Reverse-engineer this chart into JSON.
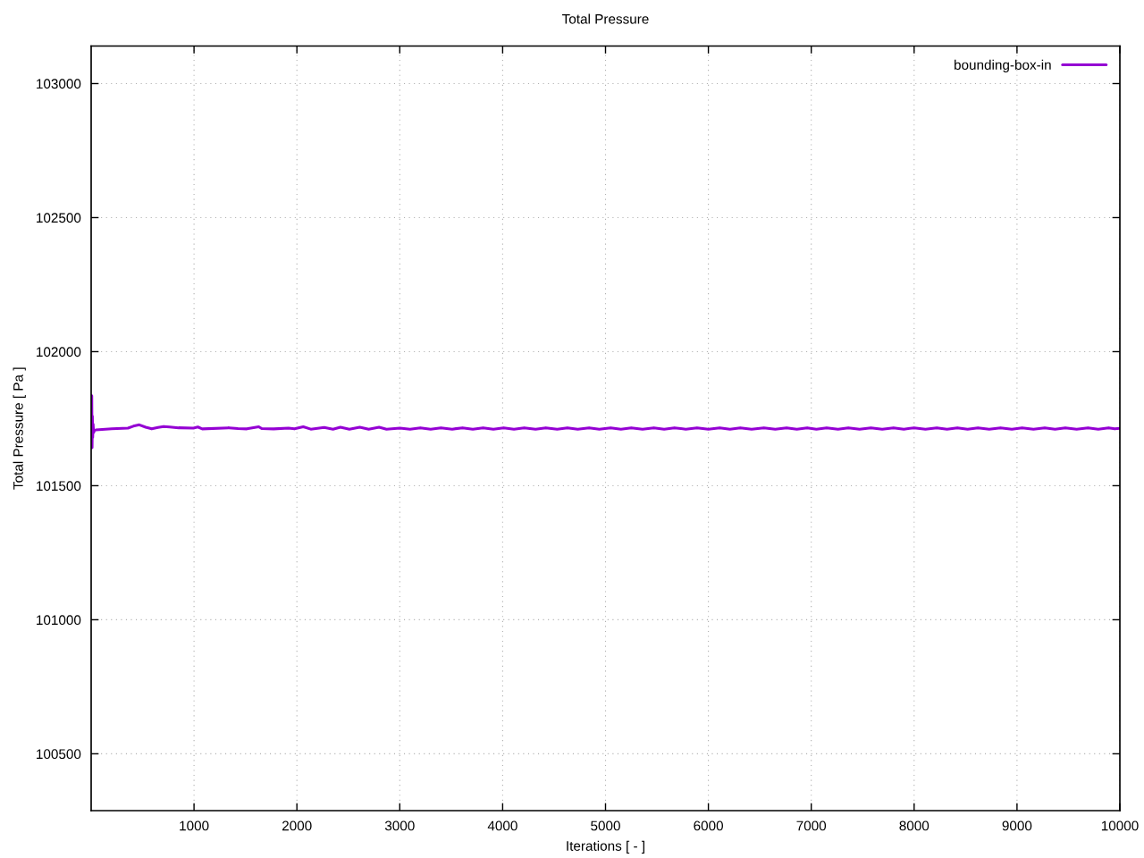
{
  "chart_data": {
    "type": "line",
    "title": "Total Pressure",
    "xlabel": "Iterations [ - ]",
    "ylabel": "Total Pressure [ Pa ]",
    "x": [
      0,
      3,
      6,
      9,
      12,
      15,
      19,
      24,
      32,
      45,
      200,
      358,
      410,
      468,
      530,
      589,
      650,
      705,
      763,
      850,
      994,
      1037,
      1080,
      1340,
      1427,
      1514,
      1629,
      1658,
      1774,
      1918,
      1976,
      2062,
      2135,
      2265,
      2351,
      2423,
      2510,
      2611,
      2698,
      2799,
      2871,
      3001,
      3100,
      3200,
      3300,
      3400,
      3510,
      3610,
      3710,
      3810,
      3910,
      4010,
      4110,
      4210,
      4320,
      4420,
      4530,
      4630,
      4730,
      4840,
      4940,
      5050,
      5150,
      5250,
      5360,
      5470,
      5570,
      5670,
      5780,
      5890,
      6000,
      6110,
      6210,
      6310,
      6420,
      6540,
      6650,
      6760,
      6860,
      6960,
      7050,
      7150,
      7260,
      7360,
      7470,
      7580,
      7690,
      7800,
      7900,
      8000,
      8110,
      8220,
      8320,
      8420,
      8520,
      8620,
      8730,
      8840,
      8950,
      9050,
      9160,
      9270,
      9370,
      9470,
      9580,
      9690,
      9790,
      9890,
      9950,
      10000
    ],
    "series": [
      {
        "name": "bounding-box-in",
        "color": "#9400d3",
        "values": [
          101837,
          101770,
          101836,
          101642,
          101760,
          101680,
          101730,
          101698,
          101706,
          101708,
          101712,
          101715,
          101722,
          101727,
          101718,
          101712,
          101717,
          101721,
          101719,
          101716,
          101715,
          101719,
          101712,
          101716,
          101713,
          101712,
          101720,
          101713,
          101712,
          101715,
          101712,
          101720,
          101711,
          101717,
          101711,
          101718,
          101711,
          101718,
          101711,
          101718,
          101711,
          101715,
          101711,
          101716,
          101711,
          101716,
          101711,
          101716,
          101711,
          101716,
          101711,
          101716,
          101711,
          101716,
          101711,
          101716,
          101711,
          101716,
          101711,
          101716,
          101711,
          101716,
          101711,
          101716,
          101711,
          101716,
          101711,
          101716,
          101711,
          101716,
          101711,
          101716,
          101711,
          101716,
          101711,
          101716,
          101711,
          101716,
          101711,
          101716,
          101711,
          101716,
          101711,
          101716,
          101711,
          101716,
          101711,
          101716,
          101711,
          101716,
          101711,
          101716,
          101711,
          101716,
          101711,
          101716,
          101711,
          101716,
          101711,
          101716,
          101711,
          101716,
          101711,
          101716,
          101711,
          101716,
          101711,
          101716,
          101712,
          101714
        ]
      }
    ],
    "xlim": [
      0,
      10000
    ],
    "ylim": [
      100288,
      103140
    ],
    "xticks": [
      1000,
      2000,
      3000,
      4000,
      5000,
      6000,
      7000,
      8000,
      9000,
      10000
    ],
    "yticks": [
      100500,
      101000,
      101500,
      102000,
      102500,
      103000
    ],
    "grid": true,
    "legend": "top right",
    "line_style": "solid"
  }
}
